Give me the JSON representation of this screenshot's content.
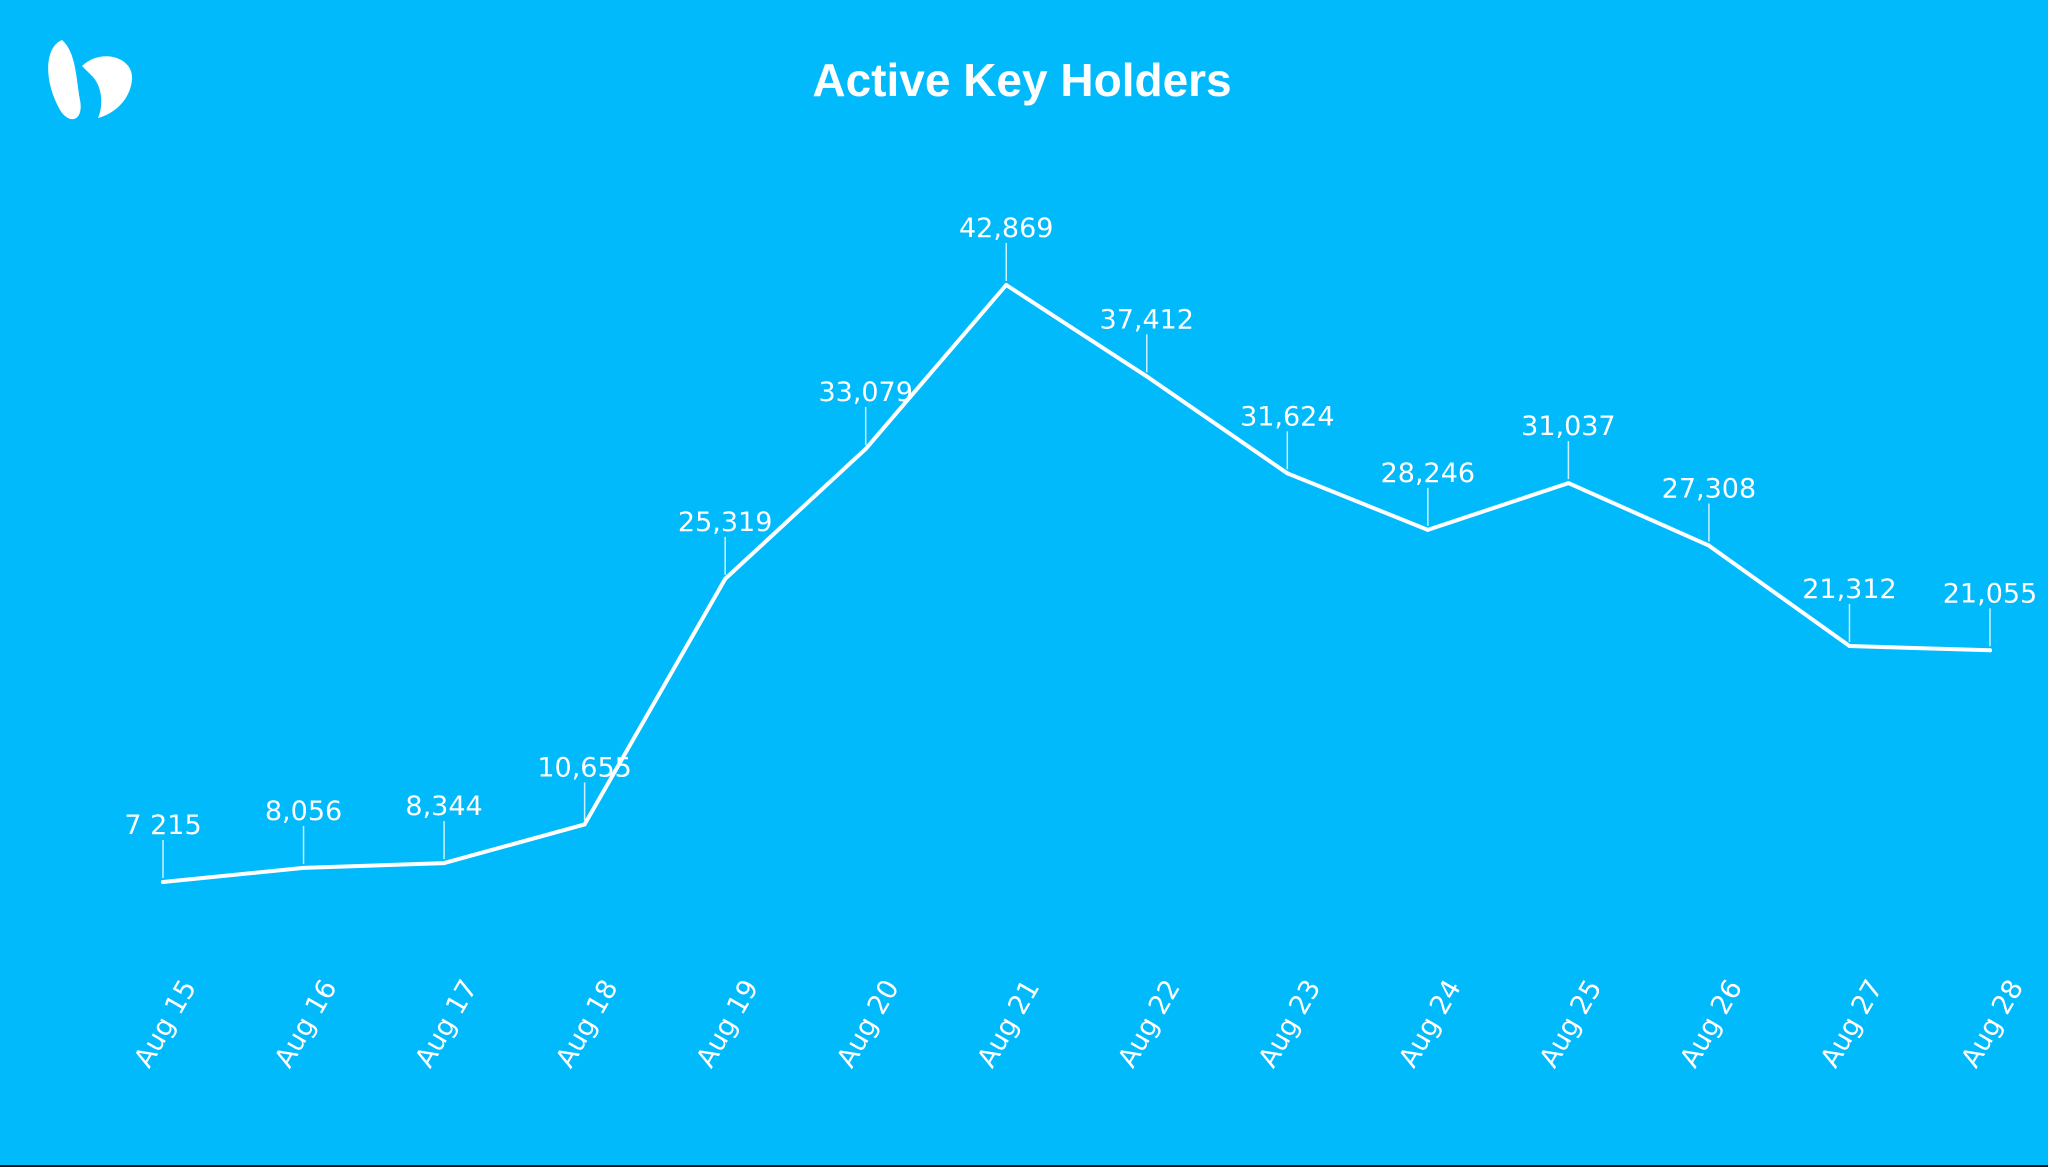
{
  "colors": {
    "background": "#00bafc",
    "line": "#ffffff",
    "text": "#ffffff"
  },
  "logo": {
    "icon": "bunny-ears-logo-icon"
  },
  "chart_data": {
    "type": "line",
    "title": "Active Key Holders",
    "xlabel": "",
    "ylabel": "",
    "categories": [
      "Aug 15",
      "Aug 16",
      "Aug 17",
      "Aug 18",
      "Aug 19",
      "Aug 20",
      "Aug 21",
      "Aug 22",
      "Aug 23",
      "Aug 24",
      "Aug 25",
      "Aug 26",
      "Aug 27",
      "Aug 28"
    ],
    "series": [
      {
        "values": [
          7215,
          8056,
          8344,
          10655,
          25319,
          33079,
          42869,
          37412,
          31624,
          28246,
          31037,
          27308,
          21312,
          21055
        ],
        "labels": [
          "7 215",
          "8,056",
          "8,344",
          "10,655",
          "25,319",
          "33,079",
          "42,869",
          "37,412",
          "31,624",
          "28,246",
          "31,037",
          "27,308",
          "21,312",
          "21,055"
        ]
      }
    ],
    "grid": false,
    "legend": "none",
    "x_tick_rotation": "rotated -60 degrees",
    "data_labels": "above each point with leader line"
  }
}
